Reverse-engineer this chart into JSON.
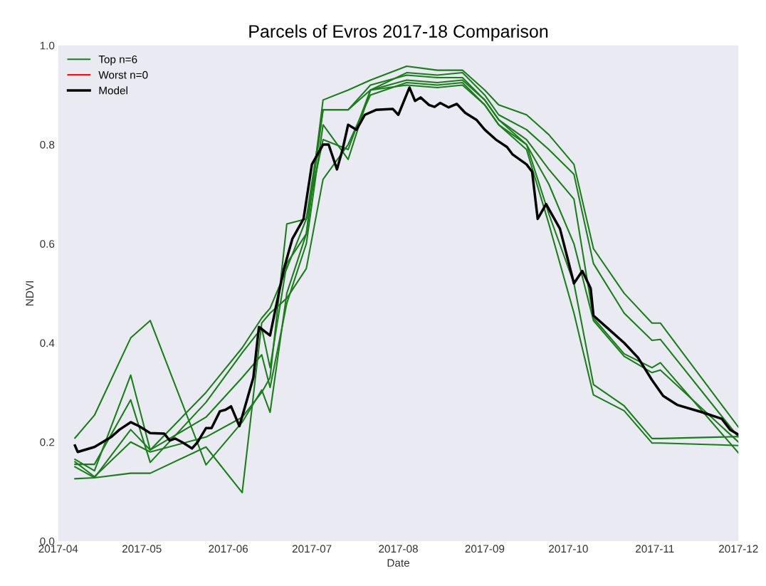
{
  "chart_data": {
    "type": "line",
    "title": "Parcels of Evros 2017-18 Comparison",
    "xlabel": "Date",
    "ylabel": "NDVI",
    "legend": "top left",
    "grid": false,
    "x": [
      "2017-04-07",
      "2017-04-14",
      "2017-04-27",
      "2017-05-04",
      "2017-05-24",
      "2017-06-06",
      "2017-06-13",
      "2017-06-16",
      "2017-06-22",
      "2017-06-29",
      "2017-07-05",
      "2017-07-14",
      "2017-07-22",
      "2017-08-04",
      "2017-08-15",
      "2017-08-24",
      "2017-09-01",
      "2017-09-06",
      "2017-09-16",
      "2017-09-24",
      "2017-10-03",
      "2017-10-10",
      "2017-10-21",
      "2017-10-31",
      "2017-11-03",
      "2017-12-01"
    ],
    "xlim": [
      "2017-04-01",
      "2017-12-01"
    ],
    "xticks": [
      {
        "value": "2017-04-01",
        "label": "2017-04"
      },
      {
        "value": "2017-05-01",
        "label": "2017-05"
      },
      {
        "value": "2017-06-01",
        "label": "2017-06"
      },
      {
        "value": "2017-07-01",
        "label": "2017-07"
      },
      {
        "value": "2017-08-01",
        "label": "2017-08"
      },
      {
        "value": "2017-09-01",
        "label": "2017-09"
      },
      {
        "value": "2017-10-01",
        "label": "2017-10"
      },
      {
        "value": "2017-11-01",
        "label": "2017-11"
      },
      {
        "value": "2017-12-01",
        "label": "2017-12"
      }
    ],
    "ylim": [
      0,
      1
    ],
    "yticks": [
      {
        "value": 0,
        "label": "0.0"
      },
      {
        "value": 0.2,
        "label": "0.2"
      },
      {
        "value": 0.4,
        "label": "0.4"
      },
      {
        "value": 0.6,
        "label": "0.6"
      },
      {
        "value": 0.8,
        "label": "0.8"
      },
      {
        "value": 1,
        "label": "1.0"
      }
    ],
    "series": [
      {
        "name": "Top n=6",
        "color": "#1b7d1b",
        "values": [
          0.208,
          0.254,
          0.41,
          0.445,
          0.154,
          0.24,
          0.305,
          0.26,
          0.5,
          0.62,
          0.89,
          0.91,
          0.93,
          0.958,
          0.95,
          0.95,
          0.91,
          0.88,
          0.86,
          0.82,
          0.76,
          0.59,
          0.5,
          0.44,
          0.44,
          0.23
        ]
      },
      {
        "color": "#1b7d1b",
        "values": [
          0.165,
          0.142,
          0.335,
          0.184,
          0.3,
          0.39,
          0.45,
          0.47,
          0.55,
          0.65,
          0.87,
          0.87,
          0.91,
          0.945,
          0.94,
          0.945,
          0.9,
          0.86,
          0.83,
          0.79,
          0.74,
          0.56,
          0.46,
          0.405,
          0.407,
          0.21
        ]
      },
      {
        "color": "#1b7d1b",
        "values": [
          0.155,
          0.155,
          0.285,
          0.159,
          0.28,
          0.38,
          0.43,
          0.35,
          0.56,
          0.62,
          0.87,
          0.87,
          0.92,
          0.94,
          0.935,
          0.935,
          0.89,
          0.85,
          0.81,
          0.75,
          0.69,
          0.45,
          0.378,
          0.35,
          0.36,
          0.178
        ]
      },
      {
        "color": "#1b7d1b",
        "values": [
          0.15,
          0.128,
          0.225,
          0.184,
          0.25,
          0.33,
          0.376,
          0.31,
          0.48,
          0.6,
          0.84,
          0.77,
          0.91,
          0.93,
          0.925,
          0.93,
          0.89,
          0.85,
          0.8,
          0.72,
          0.6,
          0.445,
          0.373,
          0.34,
          0.345,
          0.2
        ]
      },
      {
        "color": "#1b7d1b",
        "values": [
          0.126,
          0.128,
          0.137,
          0.137,
          0.19,
          0.098,
          0.44,
          0.46,
          0.49,
          0.55,
          0.73,
          0.8,
          0.9,
          0.925,
          0.92,
          0.925,
          0.88,
          0.84,
          0.8,
          0.66,
          0.52,
          0.316,
          0.273,
          0.207,
          0.207,
          0.211
        ]
      },
      {
        "color": "#1b7d1b",
        "values": [
          0.16,
          0.13,
          0.2,
          0.18,
          0.21,
          0.25,
          0.3,
          0.33,
          0.64,
          0.65,
          0.81,
          0.79,
          0.91,
          0.92,
          0.915,
          0.92,
          0.88,
          0.84,
          0.79,
          0.64,
          0.46,
          0.295,
          0.263,
          0.198,
          0.198,
          0.193
        ]
      },
      {
        "name": "Worst n=0",
        "color": "#e8141c",
        "values": [
          null,
          null,
          null,
          null,
          null,
          null,
          null,
          null,
          null,
          null,
          null,
          null,
          null,
          null,
          null,
          null,
          null,
          null,
          null,
          null,
          null,
          null,
          null,
          null,
          null,
          null
        ]
      },
      {
        "name": "Model",
        "color": "#000000",
        "x": [
          "2017-04-07",
          "2017-04-08",
          "2017-04-11",
          "2017-04-14",
          "2017-04-20",
          "2017-04-23",
          "2017-04-27",
          "2017-04-30",
          "2017-05-04",
          "2017-05-09",
          "2017-05-11",
          "2017-05-13",
          "2017-05-16",
          "2017-05-19",
          "2017-05-21",
          "2017-05-24",
          "2017-05-26",
          "2017-05-29",
          "2017-05-31",
          "2017-06-02",
          "2017-06-05",
          "2017-06-10",
          "2017-06-12",
          "2017-06-16",
          "2017-06-18",
          "2017-06-21",
          "2017-06-24",
          "2017-06-26",
          "2017-06-28",
          "2017-07-01",
          "2017-07-05",
          "2017-07-07",
          "2017-07-10",
          "2017-07-12",
          "2017-07-14",
          "2017-07-17",
          "2017-07-20",
          "2017-07-24",
          "2017-07-30",
          "2017-08-01",
          "2017-08-05",
          "2017-08-07",
          "2017-08-09",
          "2017-08-12",
          "2017-08-14",
          "2017-08-16",
          "2017-08-19",
          "2017-08-22",
          "2017-08-25",
          "2017-08-29",
          "2017-09-01",
          "2017-09-05",
          "2017-09-09",
          "2017-09-11",
          "2017-09-16",
          "2017-09-18",
          "2017-09-20",
          "2017-09-23",
          "2017-09-28",
          "2017-10-03",
          "2017-10-06",
          "2017-10-09",
          "2017-10-10",
          "2017-10-15",
          "2017-10-21",
          "2017-10-26",
          "2017-10-31",
          "2017-11-04",
          "2017-11-09",
          "2017-11-18",
          "2017-11-25",
          "2017-11-28",
          "2017-12-01"
        ],
        "values": [
          0.193,
          0.18,
          0.185,
          0.19,
          0.21,
          0.225,
          0.24,
          0.232,
          0.218,
          0.217,
          0.203,
          0.207,
          0.198,
          0.187,
          0.2,
          0.228,
          0.228,
          0.262,
          0.265,
          0.272,
          0.232,
          0.33,
          0.432,
          0.415,
          0.47,
          0.55,
          0.61,
          0.63,
          0.65,
          0.76,
          0.8,
          0.8,
          0.75,
          0.79,
          0.84,
          0.83,
          0.86,
          0.87,
          0.872,
          0.86,
          0.915,
          0.888,
          0.895,
          0.88,
          0.876,
          0.884,
          0.875,
          0.882,
          0.864,
          0.85,
          0.83,
          0.81,
          0.795,
          0.78,
          0.76,
          0.745,
          0.65,
          0.68,
          0.63,
          0.52,
          0.545,
          0.51,
          0.455,
          0.43,
          0.4,
          0.37,
          0.325,
          0.293,
          0.275,
          0.26,
          0.247,
          0.225,
          0.215
        ]
      }
    ]
  }
}
